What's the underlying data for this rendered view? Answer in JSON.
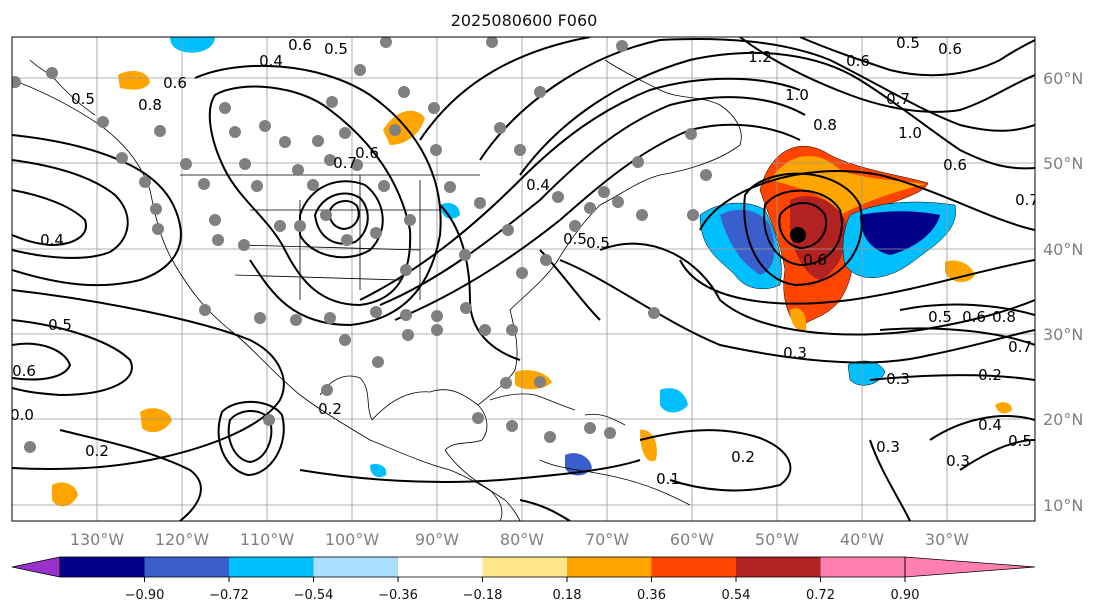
{
  "title": "2025080600 F060",
  "lon_labels": [
    "130°W",
    "120°W",
    "110°W",
    "100°W",
    "90°W",
    "80°W",
    "70°W",
    "60°W",
    "50°W",
    "40°W",
    "30°W"
  ],
  "lat_labels": [
    "60°N",
    "50°N",
    "40°N",
    "30°N",
    "20°N",
    "10°N"
  ],
  "colorbar": {
    "ticks": [
      "−0.90",
      "−0.72",
      "−0.54",
      "−0.36",
      "−0.18",
      "0.18",
      "0.36",
      "0.54",
      "0.72",
      "0.90"
    ],
    "colors": [
      "#9932cc",
      "#00008b",
      "#3a5fcd",
      "#00bfff",
      "#aadeff",
      "#ffffff",
      "#ffe68a",
      "#ffa500",
      "#ff4500",
      "#b22222",
      "#ff80b0"
    ]
  },
  "contour_labels": [
    "0.6",
    "0.5",
    "0.4",
    "0.8",
    "0.6",
    "0.5",
    "0.4",
    "0.7",
    "0.6",
    "0.5",
    "0.6",
    "0.6",
    "0.5",
    "0.4",
    "0.5",
    "0.6",
    "1.2",
    "1.0",
    "0.8",
    "0.7",
    "1.0",
    "0.6",
    "0.7",
    "0.6",
    "0.5",
    "0.6",
    "0.8",
    "0.5",
    "0.7",
    "0.3",
    "0.3",
    "0.2",
    "0.2",
    "0.3",
    "0.4",
    "0.5",
    "0.3",
    "0.2",
    "0.2",
    "0.0",
    "0.1"
  ]
}
